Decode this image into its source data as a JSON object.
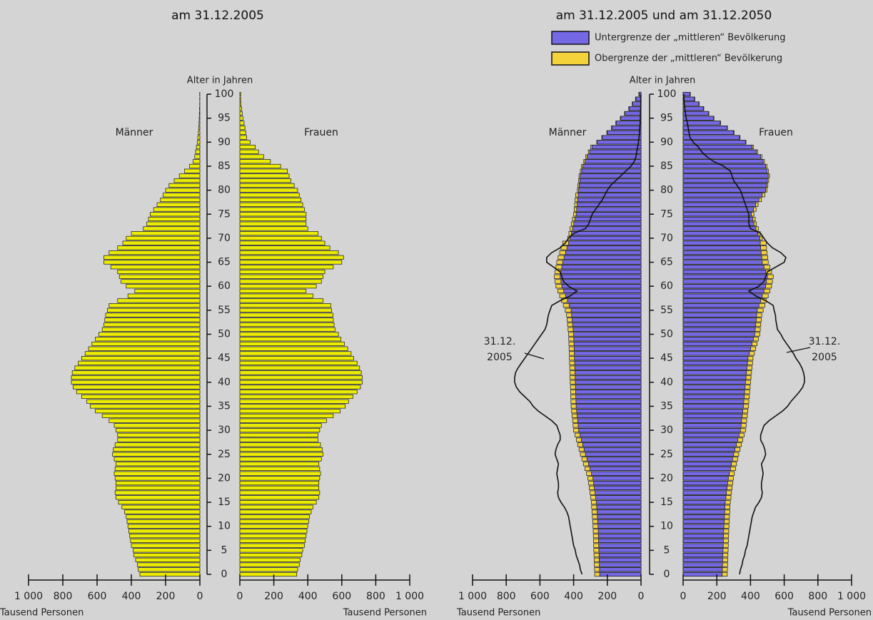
{
  "chart_data": [
    {
      "type": "pyramid",
      "title": "am 31.12.2005",
      "ylabel": "Alter in Jahren",
      "xlabel": "Tausend Personen",
      "categories": [
        0,
        null,
        null,
        null,
        null,
        5,
        null,
        null,
        null,
        null,
        10,
        null,
        null,
        null,
        null,
        15,
        null,
        null,
        null,
        null,
        20,
        null,
        null,
        null,
        null,
        25,
        null,
        null,
        null,
        null,
        30,
        null,
        null,
        null,
        null,
        35,
        null,
        null,
        null,
        null,
        40,
        null,
        null,
        null,
        null,
        45,
        null,
        null,
        null,
        null,
        50,
        null,
        null,
        null,
        null,
        55,
        null,
        null,
        null,
        null,
        60,
        null,
        null,
        null,
        null,
        65,
        null,
        null,
        null,
        null,
        70,
        null,
        null,
        null,
        null,
        75,
        null,
        null,
        null,
        null,
        80,
        null,
        null,
        null,
        null,
        85,
        null,
        null,
        null,
        null,
        90,
        null,
        null,
        null,
        null,
        95,
        null,
        null,
        null,
        null,
        100
      ],
      "xlim": [
        0,
        1000
      ],
      "xticks": [
        0,
        200,
        400,
        600,
        800,
        {
          "value": 1000,
          "label": "1 000"
        }
      ],
      "series": [
        {
          "name": "Männer",
          "color": "#ecec00",
          "values": [
            350,
            360,
            365,
            375,
            385,
            390,
            400,
            405,
            410,
            415,
            420,
            425,
            430,
            440,
            455,
            475,
            490,
            495,
            490,
            490,
            495,
            500,
            495,
            490,
            500,
            510,
            505,
            495,
            480,
            480,
            490,
            500,
            530,
            570,
            610,
            640,
            660,
            690,
            720,
            740,
            750,
            750,
            745,
            730,
            710,
            690,
            670,
            650,
            630,
            610,
            590,
            570,
            560,
            555,
            550,
            540,
            530,
            480,
            420,
            380,
            430,
            460,
            470,
            480,
            520,
            560,
            560,
            530,
            480,
            450,
            430,
            400,
            330,
            310,
            300,
            290,
            270,
            250,
            230,
            215,
            200,
            180,
            150,
            120,
            90,
            60,
            40,
            30,
            25,
            20,
            15,
            12,
            9,
            7,
            5,
            4,
            3,
            2,
            1,
            1,
            1
          ]
        },
        {
          "name": "Frauen",
          "color": "#ecec00",
          "values": [
            335,
            340,
            350,
            355,
            365,
            370,
            380,
            385,
            390,
            395,
            400,
            405,
            410,
            420,
            430,
            450,
            465,
            470,
            465,
            465,
            470,
            475,
            470,
            465,
            480,
            490,
            485,
            475,
            460,
            460,
            470,
            480,
            510,
            550,
            590,
            620,
            640,
            665,
            690,
            710,
            720,
            720,
            715,
            705,
            690,
            670,
            655,
            635,
            615,
            595,
            580,
            560,
            555,
            550,
            548,
            540,
            535,
            490,
            430,
            390,
            450,
            480,
            490,
            500,
            550,
            600,
            610,
            580,
            530,
            500,
            480,
            460,
            400,
            390,
            390,
            390,
            380,
            370,
            360,
            350,
            340,
            320,
            300,
            290,
            280,
            240,
            180,
            140,
            110,
            90,
            60,
            40,
            35,
            30,
            25,
            18,
            14,
            10,
            7,
            5,
            5
          ]
        }
      ]
    },
    {
      "type": "pyramid",
      "title": "am 31.12.2005 und am 31.12.2050",
      "ylabel": "Alter in Jahren",
      "xlabel": "Tausend Personen",
      "side_labels": [
        "Männer",
        "Frauen"
      ],
      "annotation": [
        "31.12.",
        "2005"
      ],
      "legend": "upper right",
      "categories": [
        0,
        null,
        null,
        null,
        null,
        5,
        null,
        null,
        null,
        null,
        10,
        null,
        null,
        null,
        null,
        15,
        null,
        null,
        null,
        null,
        20,
        null,
        null,
        null,
        null,
        25,
        null,
        null,
        null,
        null,
        30,
        null,
        null,
        null,
        null,
        35,
        null,
        null,
        null,
        null,
        40,
        null,
        null,
        null,
        null,
        45,
        null,
        null,
        null,
        null,
        50,
        null,
        null,
        null,
        null,
        55,
        null,
        null,
        null,
        null,
        60,
        null,
        null,
        null,
        null,
        65,
        null,
        null,
        null,
        null,
        70,
        null,
        null,
        null,
        null,
        75,
        null,
        null,
        null,
        null,
        80,
        null,
        null,
        null,
        null,
        85,
        null,
        null,
        null,
        null,
        90,
        null,
        null,
        null,
        null,
        95,
        null,
        null,
        null,
        null,
        100
      ],
      "xlim": [
        0,
        1000
      ],
      "xticks": [
        0,
        200,
        400,
        600,
        800,
        {
          "value": 1000,
          "label": "1 000"
        }
      ],
      "series": [
        {
          "name": "Untergrenze der „mittleren“ Bevölkerung",
          "color": "#7468e4",
          "men": [
            245,
            246,
            247,
            248,
            249,
            250,
            251,
            252,
            253,
            254,
            255,
            257,
            259,
            261,
            263,
            265,
            269,
            273,
            277,
            281,
            285,
            294,
            303,
            312,
            321,
            330,
            338,
            346,
            354,
            362,
            370,
            373,
            376,
            379,
            382,
            385,
            386,
            387,
            388,
            389,
            390,
            391,
            392,
            393,
            394,
            395,
            396,
            397,
            398,
            399,
            400,
            403,
            406,
            409,
            412,
            415,
            426,
            437,
            448,
            459,
            470,
            475,
            480,
            475,
            470,
            465,
            457,
            448,
            440,
            430,
            420,
            413,
            406,
            399,
            392,
            385,
            382,
            379,
            376,
            373,
            370,
            367,
            363,
            360,
            352,
            345,
            332,
            320,
            305,
            290,
            260,
            230,
            200,
            173,
            147,
            120,
            95,
            70,
            50,
            30,
            10
          ],
          "women": [
            232,
            233,
            234,
            235,
            236,
            237,
            238,
            239,
            240,
            241,
            242,
            244,
            245,
            247,
            248,
            250,
            254,
            257,
            261,
            264,
            268,
            274,
            281,
            287,
            294,
            300,
            308,
            316,
            324,
            332,
            340,
            344,
            347,
            351,
            354,
            358,
            360,
            363,
            365,
            368,
            370,
            373,
            376,
            379,
            382,
            385,
            393,
            401,
            409,
            417,
            425,
            428,
            431,
            434,
            437,
            440,
            450,
            460,
            470,
            480,
            490,
            495,
            500,
            490,
            480,
            470,
            467,
            463,
            460,
            458,
            455,
            443,
            432,
            420,
            413,
            405,
            418,
            430,
            450,
            470,
            490,
            495,
            500,
            505,
            498,
            490,
            475,
            460,
            435,
            410,
            370,
            335,
            300,
            260,
            220,
            180,
            150,
            120,
            93,
            67,
            40
          ]
        },
        {
          "name": "Obergrenze der „mittleren“ Bevölkerung",
          "color": "#f4d23c",
          "men": [
            275,
            276,
            277,
            278,
            279,
            280,
            281,
            282,
            283,
            284,
            285,
            287,
            289,
            291,
            293,
            295,
            299,
            303,
            307,
            311,
            315,
            324,
            333,
            342,
            351,
            360,
            368,
            376,
            384,
            392,
            400,
            403,
            406,
            409,
            412,
            415,
            416,
            417,
            418,
            419,
            420,
            421,
            422,
            423,
            424,
            425,
            426,
            427,
            428,
            429,
            430,
            433,
            436,
            439,
            442,
            450,
            461,
            472,
            483,
            494,
            505,
            510,
            515,
            510,
            505,
            500,
            492,
            483,
            475,
            465,
            435,
            428,
            421,
            414,
            407,
            400,
            397,
            394,
            391,
            388,
            378,
            375,
            371,
            368,
            360,
            353,
            340,
            328,
            313,
            298,
            263,
            233,
            203,
            176,
            150,
            123,
            98,
            73,
            53,
            33,
            13
          ],
          "women": [
            262,
            263,
            264,
            265,
            266,
            267,
            268,
            269,
            270,
            271,
            272,
            274,
            275,
            277,
            278,
            280,
            284,
            287,
            291,
            294,
            298,
            304,
            311,
            317,
            324,
            330,
            338,
            346,
            354,
            362,
            370,
            374,
            377,
            381,
            384,
            388,
            390,
            393,
            395,
            398,
            400,
            403,
            406,
            409,
            412,
            415,
            423,
            431,
            439,
            447,
            455,
            458,
            461,
            464,
            467,
            475,
            485,
            495,
            505,
            515,
            525,
            530,
            535,
            525,
            515,
            505,
            502,
            498,
            495,
            493,
            470,
            458,
            447,
            435,
            428,
            420,
            433,
            445,
            465,
            485,
            498,
            503,
            508,
            513,
            506,
            498,
            483,
            468,
            443,
            418,
            373,
            338,
            303,
            263,
            223,
            183,
            153,
            123,
            96,
            70,
            43
          ]
        }
      ]
    }
  ]
}
